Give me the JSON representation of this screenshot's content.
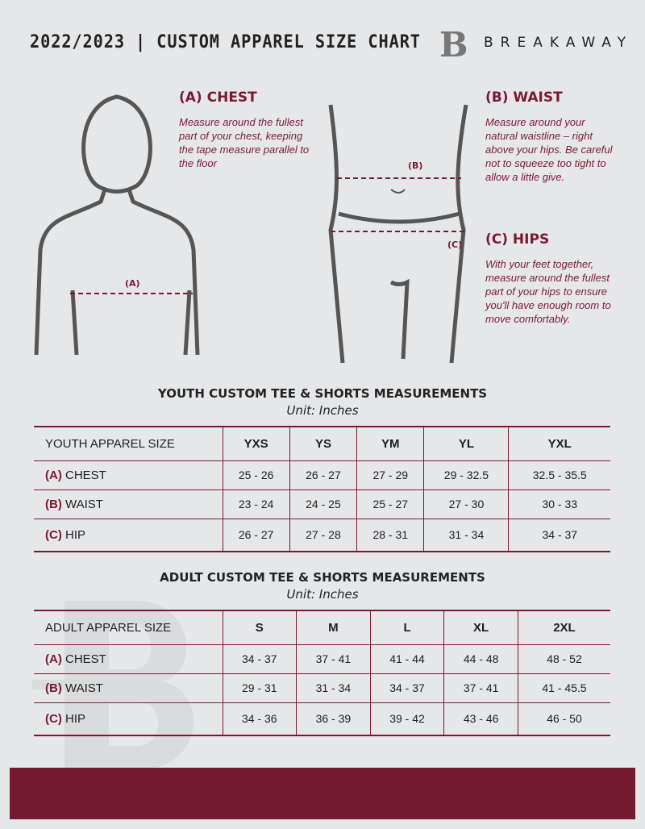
{
  "header": {
    "title": "2022/2023 | CUSTOM APPAREL SIZE CHART",
    "brand": "BREAKAWAY",
    "logo_letter": "B"
  },
  "guides": {
    "chest": {
      "heading": "(A) CHEST",
      "text": "Measure around the fullest part of your chest, keeping the tape measure parallel to the floor",
      "marker": "(A)"
    },
    "waist": {
      "heading": "(B) WAIST",
      "text": "Measure around your natural waistline – right above your hips. Be careful not to squeeze too tight to allow a little give.",
      "marker": "(B)"
    },
    "hips": {
      "heading": "(C) HIPS",
      "text": "With your feet together, measure around the fullest part of your hips to ensure you'll have enough room to move comfortably.",
      "marker": "(C)"
    }
  },
  "youth": {
    "title": "YOUTH CUSTOM TEE & SHORTS MEASUREMENTS",
    "unit": "Unit: Inches",
    "header": [
      "YOUTH APPAREL SIZE",
      "YXS",
      "YS",
      "YM",
      "YL",
      "YXL"
    ],
    "rows": [
      {
        "letter": "(A)",
        "label": "CHEST",
        "values": [
          "25 - 26",
          "26 - 27",
          "27 - 29",
          "29 - 32.5",
          "32.5 - 35.5"
        ]
      },
      {
        "letter": "(B)",
        "label": "WAIST",
        "values": [
          "23 - 24",
          "24 - 25",
          "25 - 27",
          "27 - 30",
          "30 - 33"
        ]
      },
      {
        "letter": "(C)",
        "label": "HIP",
        "values": [
          "26 - 27",
          "27 - 28",
          "28 - 31",
          "31 - 34",
          "34 - 37"
        ]
      }
    ]
  },
  "adult": {
    "title": "ADULT CUSTOM TEE & SHORTS MEASUREMENTS",
    "unit": "Unit: Inches",
    "header": [
      "ADULT APPAREL SIZE",
      "S",
      "M",
      "L",
      "XL",
      "2XL"
    ],
    "rows": [
      {
        "letter": "(A)",
        "label": "CHEST",
        "values": [
          "34 - 37",
          "37 - 41",
          "41 - 44",
          "44 - 48",
          "48 - 52"
        ]
      },
      {
        "letter": "(B)",
        "label": "WAIST",
        "values": [
          "29 - 31",
          "31 - 34",
          "34 - 37",
          "37 - 41",
          "41 - 45.5"
        ]
      },
      {
        "letter": "(C)",
        "label": "HIP",
        "values": [
          "34 - 36",
          "36 - 39",
          "39 - 42",
          "43 - 46",
          "46 - 50"
        ]
      }
    ]
  },
  "colors": {
    "accent": "#7a1a31",
    "background": "#e6e7e9",
    "footer": "#731930"
  }
}
